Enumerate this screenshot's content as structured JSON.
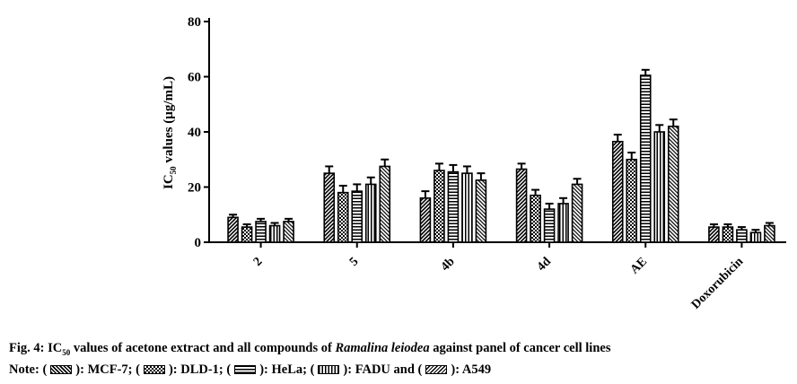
{
  "chart_data": {
    "type": "bar",
    "title": "",
    "xlabel": "",
    "ylabel": "IC50 values (µg/mL)",
    "ylabel_main": "IC",
    "ylabel_sub": "50",
    "ylabel_rest": " values (µg/mL)",
    "ylim": [
      0,
      80
    ],
    "yticks": [
      0,
      20,
      40,
      60,
      80
    ],
    "grid": false,
    "categories": [
      "2",
      "5",
      "4b",
      "4d",
      "AE",
      "Doxorubicin"
    ],
    "series": [
      {
        "name": "MCF-7",
        "pattern": "mcf7",
        "values": [
          9,
          25,
          16,
          26.5,
          36.5,
          5.5
        ],
        "errors": [
          1,
          2.5,
          2.5,
          2,
          2.5,
          1
        ]
      },
      {
        "name": "DLD-1",
        "pattern": "dld1",
        "values": [
          5.5,
          18,
          26,
          17,
          30,
          5.5
        ],
        "errors": [
          1,
          2.5,
          2.5,
          2,
          2.5,
          1
        ]
      },
      {
        "name": "HeLa",
        "pattern": "hela",
        "values": [
          7.5,
          18.5,
          25.5,
          12,
          60.5,
          4.5
        ],
        "errors": [
          1,
          2.5,
          2.5,
          2,
          2,
          1
        ]
      },
      {
        "name": "FADU",
        "pattern": "fadu",
        "values": [
          6,
          21,
          25,
          14,
          40,
          3.5
        ],
        "errors": [
          1,
          2.5,
          2.5,
          2,
          2.5,
          1
        ]
      },
      {
        "name": "A549",
        "pattern": "a549",
        "values": [
          7.5,
          27.5,
          22.5,
          21,
          42,
          6
        ],
        "errors": [
          1,
          2.5,
          2.5,
          2,
          2.5,
          1
        ]
      }
    ]
  },
  "caption": {
    "fig_label": "Fig. 4: IC",
    "fig_sub": "50",
    "text_before_italic": " values of acetone extract and all compounds of ",
    "italic": "Ramalina leiodea",
    "text_after_italic": " against panel of cancer cell lines",
    "note_prefix": "Note: (",
    "legend": [
      {
        "label": "): MCF-7; (",
        "pattern": "mcf7"
      },
      {
        "label": "): DLD-1; (",
        "pattern": "dld1"
      },
      {
        "label": "): HeLa; (",
        "pattern": "hela"
      },
      {
        "label": "): FADU and (",
        "pattern": "fadu"
      },
      {
        "label": "): A549",
        "pattern": "a549"
      }
    ]
  }
}
